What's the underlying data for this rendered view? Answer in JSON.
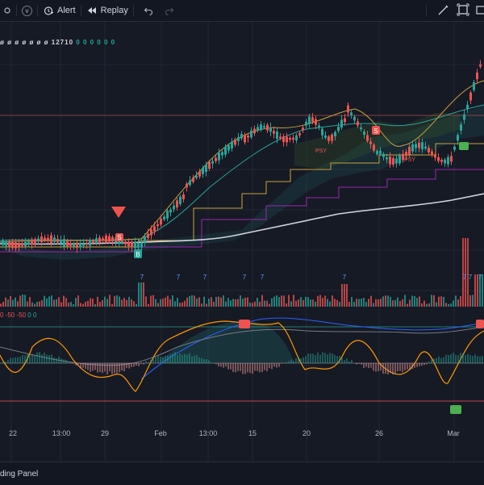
{
  "toolbar": {
    "circle_button_label": "v",
    "alert_label": "Alert",
    "replay_label": "Replay"
  },
  "legend": {
    "symbols": "ø ø ø ø ø ø ø",
    "value": "12710",
    "zeros": "0 0 0 0 0 0"
  },
  "oscillator_legend": {
    "values": [
      "0",
      "-50",
      "-50",
      "0",
      "0"
    ]
  },
  "x_axis": {
    "labels": [
      "22",
      "13:00",
      "29",
      "Feb",
      "13:00",
      "15",
      "20",
      "26",
      "Mar"
    ]
  },
  "volume_markers": [
    "7",
    "7",
    "7",
    "7",
    "7",
    "7",
    "7",
    "7",
    "7"
  ],
  "signals": {
    "sell_label": "S",
    "buy_label": "B",
    "psy_label": "PSY"
  },
  "bottom_panel": {
    "label": "ding Panel"
  },
  "colors": {
    "up": "#26a69a",
    "down": "#ef5350",
    "background": "#161a25",
    "grid": "#222632",
    "white_ma": "#d1d4dc",
    "teal_ma": "#26a69a",
    "gold_line": "#c9a13b",
    "purple_line": "#9c27b0",
    "orange_osc": "#ff9800",
    "blue_line": "#2962ff"
  }
}
